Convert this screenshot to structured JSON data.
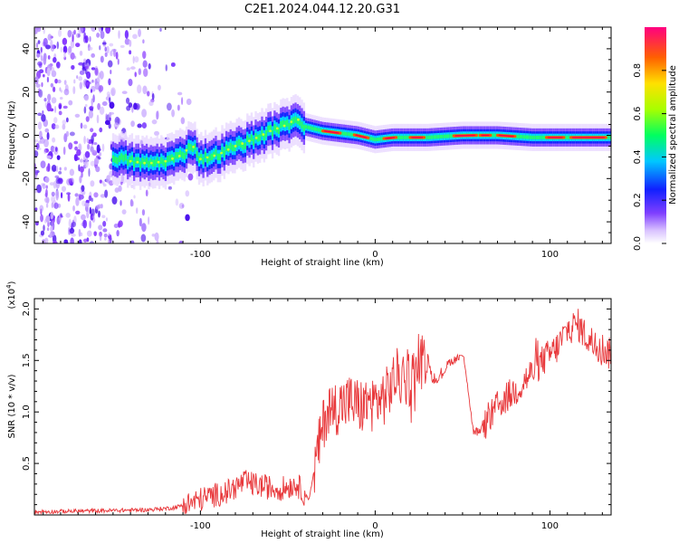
{
  "title": "C2E1.2024.044.12.20.G31",
  "chart_data": [
    {
      "type": "heatmap",
      "xlabel": "Height of straight line (km)",
      "ylabel": "Frequency (Hz)",
      "xlim": [
        -195,
        135
      ],
      "ylim": [
        -50,
        50
      ],
      "xticks": [
        -100,
        0,
        100
      ],
      "yticks": [
        -40,
        -20,
        0,
        20,
        40
      ],
      "colorbar": {
        "label": "Normalized spectral amplitude",
        "ticks": [
          "0.0",
          "0.2",
          "0.4",
          "0.6",
          "0.8"
        ],
        "range": [
          0,
          1
        ]
      },
      "ridge": [
        {
          "x": -150,
          "y": -10
        },
        {
          "x": -140,
          "y": -12
        },
        {
          "x": -130,
          "y": -13
        },
        {
          "x": -120,
          "y": -12
        },
        {
          "x": -110,
          "y": -9
        },
        {
          "x": -105,
          "y": -4
        },
        {
          "x": -100,
          "y": -11
        },
        {
          "x": -90,
          "y": -9
        },
        {
          "x": -80,
          "y": -5
        },
        {
          "x": -70,
          "y": -2
        },
        {
          "x": -60,
          "y": 2
        },
        {
          "x": -50,
          "y": 5
        },
        {
          "x": -45,
          "y": 8
        },
        {
          "x": -40,
          "y": 4
        },
        {
          "x": -30,
          "y": 2
        },
        {
          "x": -20,
          "y": 1
        },
        {
          "x": -10,
          "y": 0
        },
        {
          "x": 0,
          "y": -2
        },
        {
          "x": 10,
          "y": -1
        },
        {
          "x": 30,
          "y": -1
        },
        {
          "x": 50,
          "y": 0
        },
        {
          "x": 70,
          "y": 0
        },
        {
          "x": 90,
          "y": -1
        },
        {
          "x": 110,
          "y": -1
        },
        {
          "x": 135,
          "y": -1
        }
      ],
      "noise_region": {
        "x": [
          -195,
          -105
        ],
        "y": [
          -50,
          50
        ]
      }
    },
    {
      "type": "line",
      "xlabel": "Height of straight line (km)",
      "ylabel": "SNR (10 * v/v)",
      "ymultiplier": "(x10",
      "ymultiplier_exp": "4",
      "ymultiplier_close": ")",
      "xlim": [
        -195,
        135
      ],
      "ylim": [
        0,
        2.1
      ],
      "xticks": [
        -100,
        0,
        100
      ],
      "yticks": [
        0.5,
        1.0,
        1.5,
        2.0
      ],
      "ytick_labels": [
        "0.5",
        "1.0",
        "1.5",
        "2.0"
      ],
      "color": "#e8383b",
      "series": [
        {
          "x": [
            -195,
            -160,
            -130,
            -115,
            -105,
            -95,
            -85,
            -75,
            -65,
            -55,
            -45,
            -38,
            -33,
            -28,
            -22,
            -15,
            -8,
            0,
            6,
            12,
            18,
            24,
            28,
            30,
            33,
            38,
            42,
            47,
            50,
            52,
            56,
            60,
            66,
            72,
            80,
            88,
            96,
            104,
            110,
            116,
            122,
            128,
            135
          ],
          "y": [
            0.03,
            0.04,
            0.05,
            0.07,
            0.12,
            0.18,
            0.22,
            0.32,
            0.28,
            0.25,
            0.3,
            0.15,
            0.6,
            1.0,
            1.05,
            1.1,
            1.05,
            1.1,
            1.15,
            1.35,
            1.3,
            1.4,
            1.55,
            1.55,
            1.3,
            1.35,
            1.48,
            1.52,
            1.55,
            1.4,
            0.82,
            0.8,
            0.95,
            1.1,
            1.2,
            1.35,
            1.5,
            1.62,
            1.8,
            1.85,
            1.7,
            1.65,
            1.55
          ]
        }
      ]
    }
  ]
}
